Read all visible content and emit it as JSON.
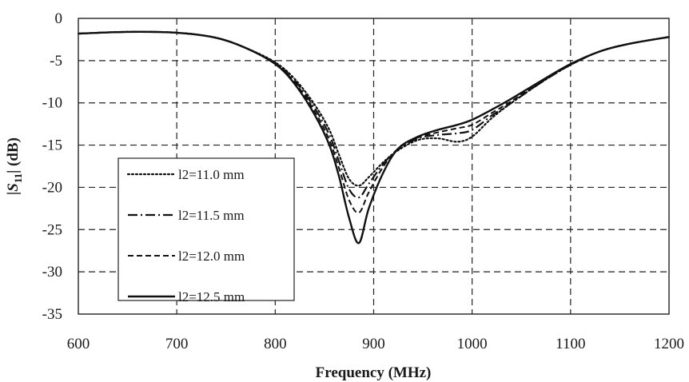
{
  "chart_data": {
    "type": "line",
    "title": "",
    "xlabel": "Frequency (MHz)",
    "ylabel": "|S11| (dB)",
    "ylabel_parts": {
      "bar_open": "|",
      "s": "S",
      "sub": "11",
      "rest": "| (dB)"
    },
    "xlim": [
      600,
      1200
    ],
    "ylim": [
      -35,
      0
    ],
    "xticks": [
      600,
      700,
      800,
      900,
      1000,
      1100,
      1200
    ],
    "yticks": [
      0,
      -5,
      -10,
      -15,
      -20,
      -25,
      -30,
      -35
    ],
    "grid": true,
    "legend_position": "lower-left",
    "series": [
      {
        "name": "l2=11.0 mm",
        "dash": "dotted",
        "x": [
          600,
          650,
          700,
          740,
          770,
          800,
          820,
          840,
          855,
          865,
          875,
          885,
          895,
          910,
          925,
          945,
          965,
          985,
          1000,
          1020,
          1040,
          1070,
          1100,
          1130,
          1160,
          1200
        ],
        "y": [
          -1.8,
          -1.6,
          -1.7,
          -2.3,
          -3.5,
          -5.2,
          -7.2,
          -10.2,
          -13.2,
          -16.2,
          -19.0,
          -19.8,
          -18.8,
          -17.0,
          -15.6,
          -14.4,
          -14.2,
          -14.6,
          -14.0,
          -11.8,
          -10.0,
          -7.6,
          -5.5,
          -3.9,
          -3.0,
          -2.2
        ]
      },
      {
        "name": "l2=11.5 mm",
        "dash": "dash-dot",
        "x": [
          600,
          650,
          700,
          740,
          770,
          800,
          820,
          840,
          855,
          865,
          875,
          885,
          895,
          910,
          925,
          945,
          965,
          985,
          1000,
          1020,
          1040,
          1070,
          1100,
          1130,
          1160,
          1200
        ],
        "y": [
          -1.8,
          -1.6,
          -1.7,
          -2.3,
          -3.5,
          -5.3,
          -7.4,
          -10.6,
          -13.8,
          -17.0,
          -20.2,
          -21.2,
          -19.6,
          -17.2,
          -15.5,
          -14.2,
          -13.8,
          -13.6,
          -13.2,
          -11.5,
          -10.0,
          -7.6,
          -5.5,
          -3.9,
          -3.0,
          -2.2
        ]
      },
      {
        "name": "l2=12.0 mm",
        "dash": "dashed",
        "x": [
          600,
          650,
          700,
          740,
          770,
          800,
          820,
          840,
          855,
          865,
          875,
          885,
          895,
          910,
          925,
          945,
          965,
          985,
          1000,
          1020,
          1040,
          1070,
          1100,
          1130,
          1160,
          1200
        ],
        "y": [
          -1.8,
          -1.6,
          -1.7,
          -2.3,
          -3.5,
          -5.4,
          -7.6,
          -11.0,
          -14.4,
          -17.8,
          -21.5,
          -23.0,
          -20.6,
          -17.5,
          -15.4,
          -14.1,
          -13.5,
          -13.0,
          -12.6,
          -11.2,
          -9.8,
          -7.5,
          -5.5,
          -3.9,
          -3.0,
          -2.2
        ]
      },
      {
        "name": "l2=12.5 mm",
        "dash": "solid",
        "x": [
          600,
          650,
          700,
          740,
          770,
          800,
          820,
          840,
          855,
          865,
          875,
          885,
          895,
          910,
          925,
          945,
          965,
          985,
          1000,
          1020,
          1040,
          1070,
          1100,
          1130,
          1160,
          1200
        ],
        "y": [
          -1.8,
          -1.6,
          -1.7,
          -2.3,
          -3.5,
          -5.4,
          -7.8,
          -11.4,
          -15.0,
          -18.8,
          -23.6,
          -26.6,
          -22.5,
          -18.2,
          -15.4,
          -14.0,
          -13.2,
          -12.6,
          -12.0,
          -10.8,
          -9.5,
          -7.4,
          -5.4,
          -3.9,
          -3.0,
          -2.2
        ]
      }
    ]
  }
}
